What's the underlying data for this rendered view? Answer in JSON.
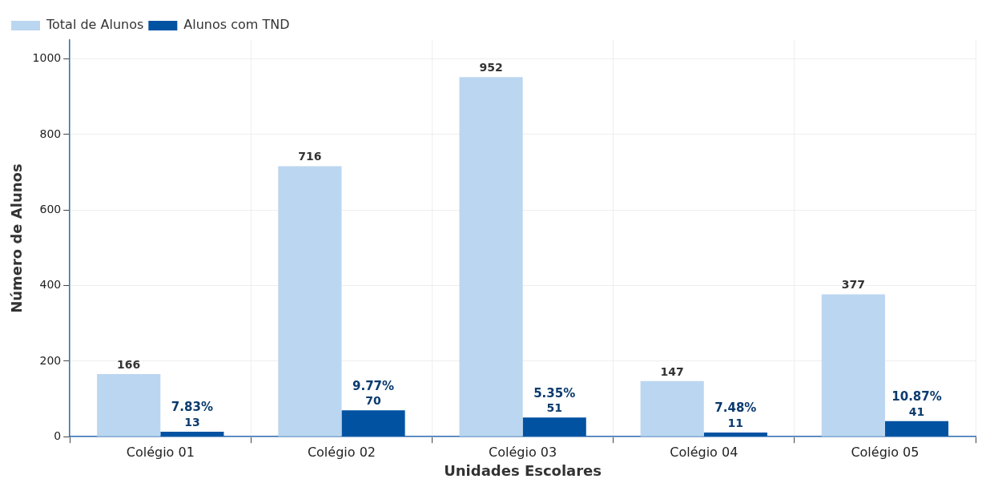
{
  "chart_data": {
    "type": "bar",
    "xlabel": "Unidades Escolares",
    "ylabel": "Número de Alunos",
    "categories": [
      "Colégio 01",
      "Colégio 02",
      "Colégio 03",
      "Colégio 04",
      "Colégio 05"
    ],
    "series": [
      {
        "name": "Total de Alunos",
        "color": "#bbd6f0",
        "values": [
          166,
          716,
          952,
          147,
          377
        ],
        "value_labels": [
          "166",
          "716",
          "952",
          "147",
          "377"
        ]
      },
      {
        "name": "Alunos com TND",
        "color": "#0252a2",
        "values": [
          13,
          70,
          51,
          11,
          41
        ],
        "value_labels": [
          "13",
          "70",
          "51",
          "11",
          "41"
        ]
      }
    ],
    "annotations": [
      "7.83%",
      "9.77%",
      "5.35%",
      "7.48%",
      "10.87%"
    ],
    "ylim": [
      0,
      1050
    ],
    "yticks": [
      0,
      200,
      400,
      600,
      800,
      1000
    ],
    "grid": true,
    "legend": "top left"
  }
}
